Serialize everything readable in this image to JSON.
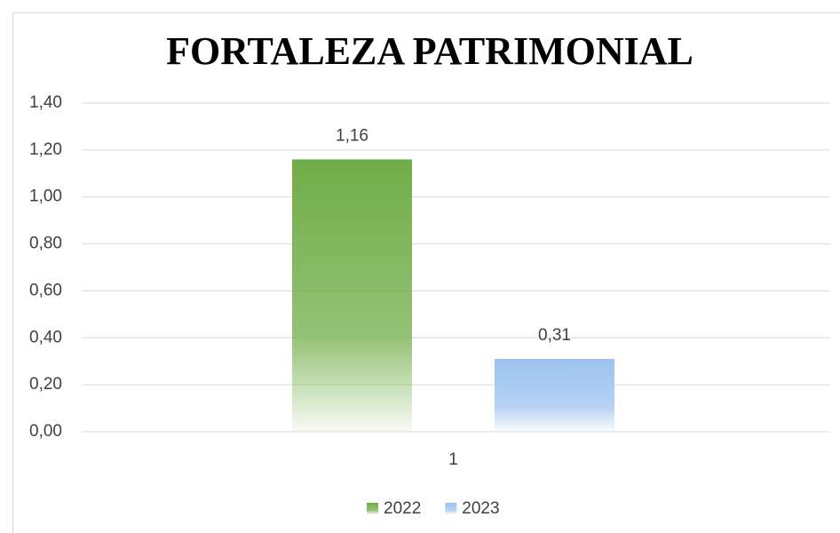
{
  "chart_data": {
    "type": "bar",
    "title": "FORTALEZA PATRIMONIAL",
    "categories": [
      "1"
    ],
    "series": [
      {
        "name": "2022",
        "color": "#70ad47",
        "values": [
          1.16
        ],
        "value_labels": [
          "1,16"
        ]
      },
      {
        "name": "2023",
        "color": "#9dc3f0",
        "values": [
          0.31
        ],
        "value_labels": [
          "0,31"
        ]
      }
    ],
    "ylim": [
      0,
      1.4
    ],
    "yticks": [
      {
        "value": 0,
        "label": "0,00"
      },
      {
        "value": 0.2,
        "label": "0,20"
      },
      {
        "value": 0.4,
        "label": "0,40"
      },
      {
        "value": 0.6,
        "label": "0,60"
      },
      {
        "value": 0.8,
        "label": "0,80"
      },
      {
        "value": 1.0,
        "label": "1,00"
      },
      {
        "value": 1.2,
        "label": "1,20"
      },
      {
        "value": 1.4,
        "label": "1,40"
      }
    ],
    "grid": true,
    "legend": "bottom"
  }
}
